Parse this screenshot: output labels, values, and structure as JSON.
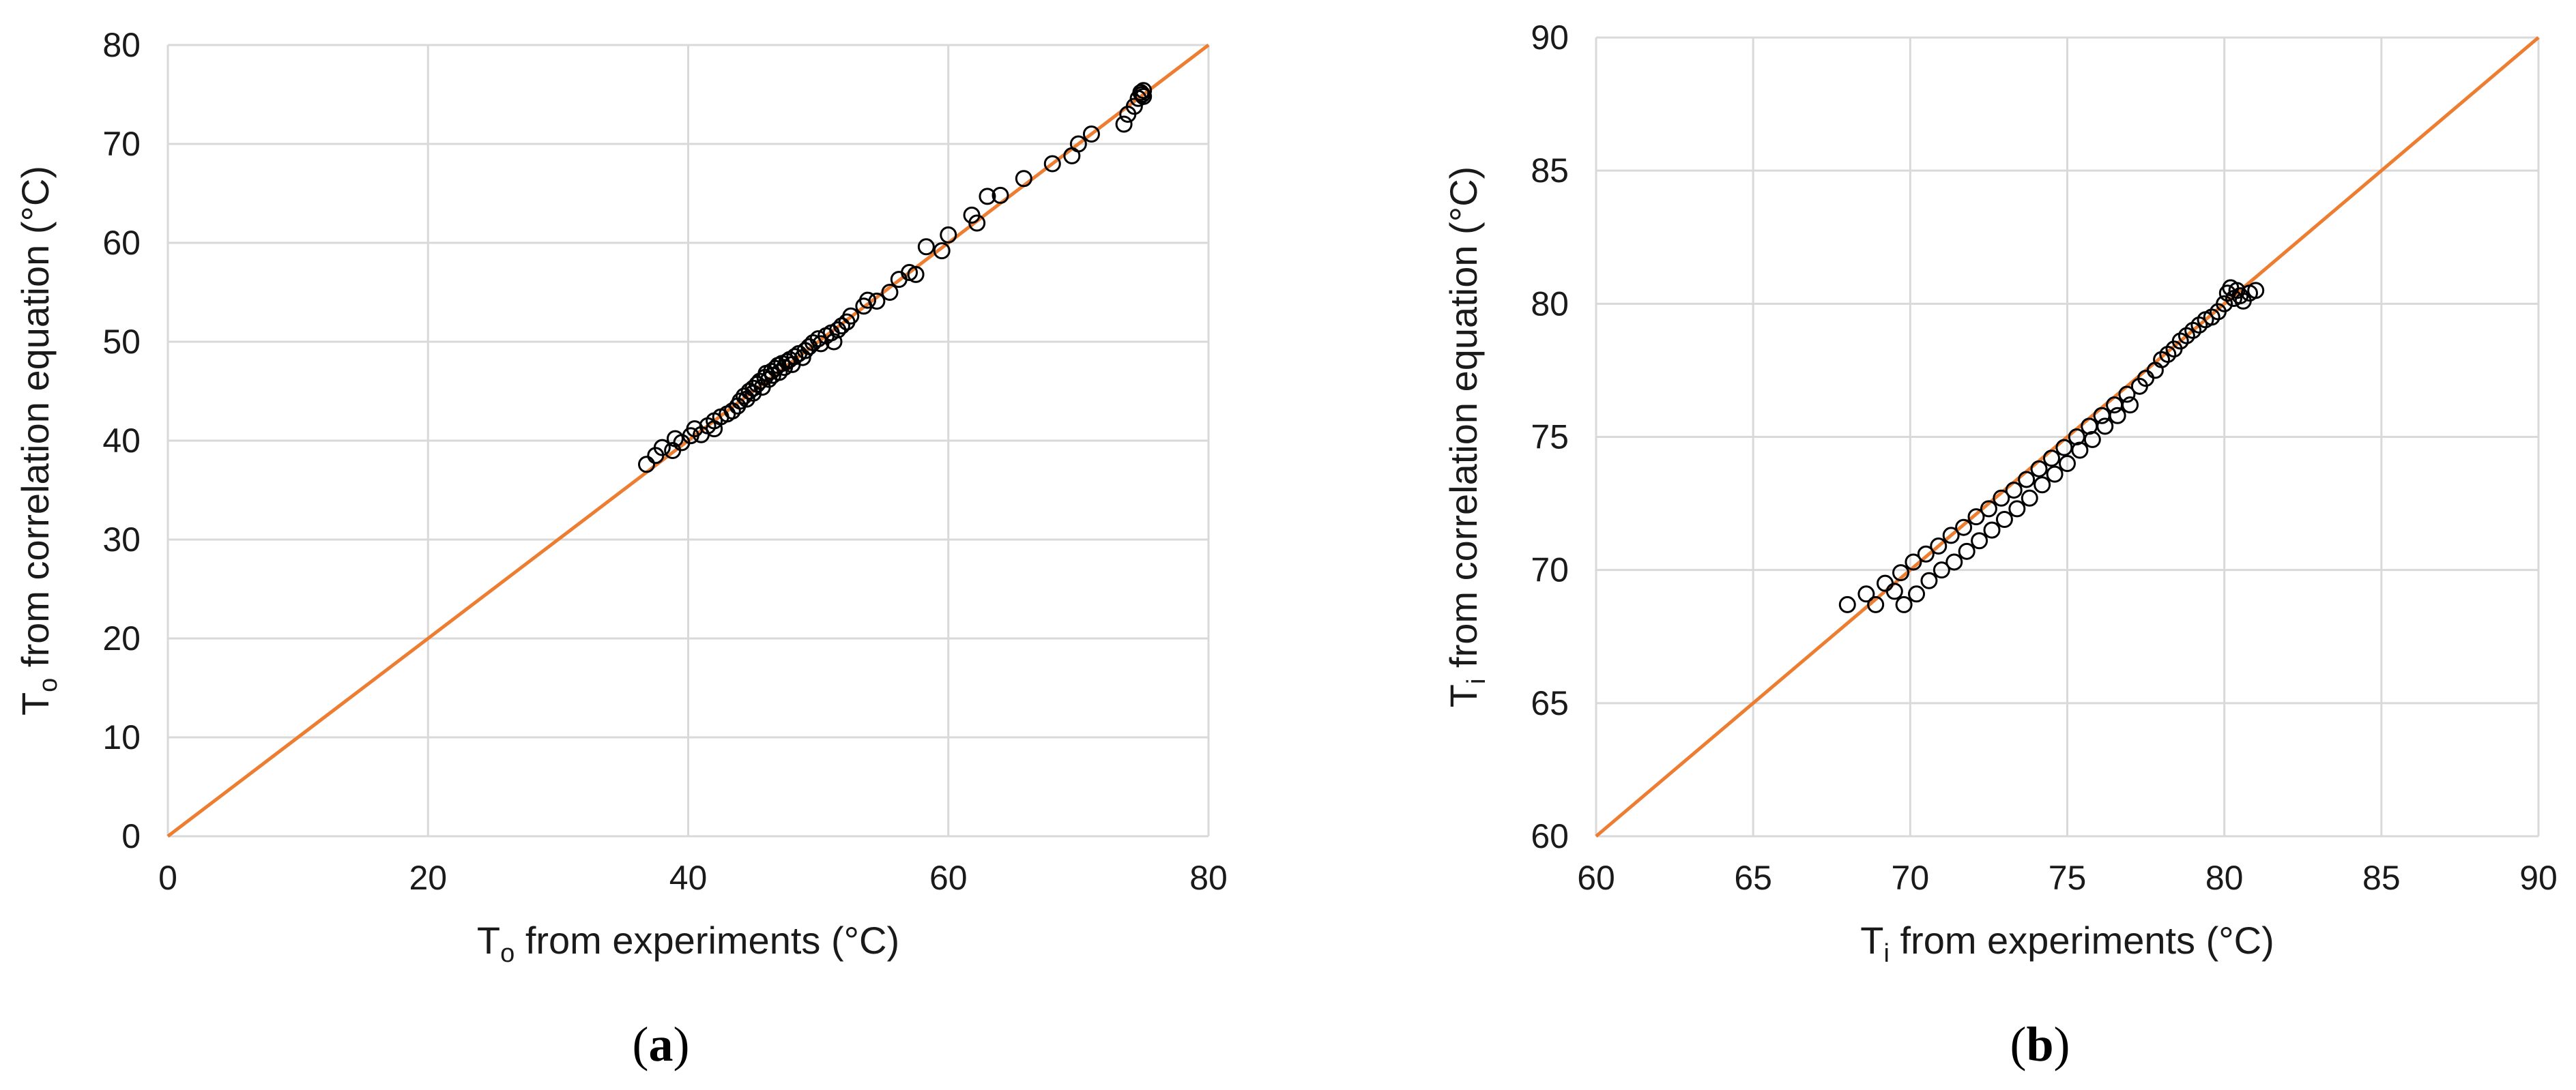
{
  "chart_data": [
    {
      "type": "scatter",
      "panel_label": "a",
      "title": "",
      "xlabel": {
        "main": "T",
        "sub": "o",
        "rest": " from experiments (°C)"
      },
      "ylabel": {
        "main": "T",
        "sub": "o",
        "rest": " from correlation equation (°C)"
      },
      "xlim": [
        0,
        80
      ],
      "ylim": [
        0,
        80
      ],
      "xticks": [
        "0",
        "20",
        "40",
        "60",
        "80"
      ],
      "yticks": [
        "0",
        "10",
        "20",
        "30",
        "40",
        "50",
        "60",
        "70",
        "80"
      ],
      "grid": true,
      "reference_line": {
        "x": [
          0,
          80
        ],
        "y": [
          0,
          80
        ],
        "color": "#ed7d31"
      },
      "points": [
        [
          36.8,
          37.6
        ],
        [
          37.5,
          38.5
        ],
        [
          38.0,
          39.3
        ],
        [
          38.8,
          39.0
        ],
        [
          39.0,
          40.2
        ],
        [
          39.5,
          39.8
        ],
        [
          40.2,
          40.5
        ],
        [
          40.5,
          41.2
        ],
        [
          41.0,
          40.6
        ],
        [
          41.5,
          41.5
        ],
        [
          42.0,
          41.2
        ],
        [
          42.0,
          42.0
        ],
        [
          42.5,
          42.4
        ],
        [
          43.0,
          42.7
        ],
        [
          43.4,
          43.0
        ],
        [
          43.8,
          43.5
        ],
        [
          44.0,
          44.0
        ],
        [
          44.3,
          44.5
        ],
        [
          44.5,
          44.2
        ],
        [
          44.7,
          45.0
        ],
        [
          45.0,
          45.3
        ],
        [
          45.0,
          44.8
        ],
        [
          45.3,
          45.7
        ],
        [
          45.5,
          46.0
        ],
        [
          45.7,
          45.4
        ],
        [
          45.9,
          46.4
        ],
        [
          46.0,
          46.8
        ],
        [
          46.2,
          46.2
        ],
        [
          46.4,
          47.0
        ],
        [
          46.5,
          46.6
        ],
        [
          46.7,
          47.3
        ],
        [
          46.9,
          47.6
        ],
        [
          47.0,
          46.9
        ],
        [
          47.2,
          47.8
        ],
        [
          47.4,
          47.4
        ],
        [
          47.6,
          48.0
        ],
        [
          47.8,
          48.2
        ],
        [
          48.0,
          47.7
        ],
        [
          48.2,
          48.5
        ],
        [
          48.5,
          48.8
        ],
        [
          48.8,
          48.4
        ],
        [
          49.0,
          49.1
        ],
        [
          49.3,
          49.5
        ],
        [
          49.6,
          49.9
        ],
        [
          50.0,
          50.3
        ],
        [
          50.2,
          49.8
        ],
        [
          50.6,
          50.6
        ],
        [
          51.0,
          50.9
        ],
        [
          51.2,
          50.0
        ],
        [
          51.5,
          51.2
        ],
        [
          51.8,
          51.6
        ],
        [
          52.2,
          52.0
        ],
        [
          52.5,
          52.6
        ],
        [
          53.5,
          53.6
        ],
        [
          53.8,
          54.2
        ],
        [
          54.5,
          54.1
        ],
        [
          55.5,
          55.0
        ],
        [
          56.2,
          56.3
        ],
        [
          57.0,
          57.0
        ],
        [
          57.5,
          56.8
        ],
        [
          58.3,
          59.6
        ],
        [
          59.5,
          59.2
        ],
        [
          60.0,
          60.8
        ],
        [
          61.8,
          62.8
        ],
        [
          62.2,
          62.0
        ],
        [
          63.0,
          64.7
        ],
        [
          64.0,
          64.8
        ],
        [
          65.8,
          66.5
        ],
        [
          68.0,
          68.0
        ],
        [
          69.5,
          68.8
        ],
        [
          70.0,
          70.0
        ],
        [
          71.0,
          71.0
        ],
        [
          73.5,
          72.0
        ],
        [
          73.8,
          73.0
        ],
        [
          74.3,
          73.8
        ],
        [
          74.6,
          74.6
        ],
        [
          74.8,
          75.2
        ],
        [
          75.0,
          74.8
        ],
        [
          75.0,
          75.4
        ],
        [
          74.9,
          75.0
        ]
      ]
    },
    {
      "type": "scatter",
      "panel_label": "b",
      "title": "",
      "xlabel": {
        "main": "T",
        "sub": "i",
        "rest": " from experiments (°C)"
      },
      "ylabel": {
        "main": "T",
        "sub": "i",
        "rest": " from correlation equation (°C)"
      },
      "xlim": [
        60,
        90
      ],
      "ylim": [
        60,
        90
      ],
      "xticks": [
        "60",
        "65",
        "70",
        "75",
        "80",
        "85",
        "90"
      ],
      "yticks": [
        "60",
        "65",
        "70",
        "75",
        "80",
        "85",
        "90"
      ],
      "grid": true,
      "reference_line": {
        "x": [
          60,
          90
        ],
        "y": [
          60,
          90
        ],
        "color": "#ed7d31"
      },
      "points": [
        [
          68.0,
          68.7
        ],
        [
          68.6,
          69.1
        ],
        [
          68.9,
          68.7
        ],
        [
          69.2,
          69.5
        ],
        [
          69.5,
          69.2
        ],
        [
          69.7,
          69.9
        ],
        [
          69.8,
          68.7
        ],
        [
          70.1,
          70.3
        ],
        [
          70.2,
          69.1
        ],
        [
          70.5,
          70.6
        ],
        [
          70.6,
          69.6
        ],
        [
          70.9,
          70.9
        ],
        [
          71.0,
          70.0
        ],
        [
          71.3,
          71.3
        ],
        [
          71.4,
          70.3
        ],
        [
          71.7,
          71.6
        ],
        [
          71.8,
          70.7
        ],
        [
          72.1,
          72.0
        ],
        [
          72.2,
          71.1
        ],
        [
          72.5,
          72.3
        ],
        [
          72.6,
          71.5
        ],
        [
          72.9,
          72.7
        ],
        [
          73.0,
          71.9
        ],
        [
          73.3,
          73.0
        ],
        [
          73.4,
          72.3
        ],
        [
          73.7,
          73.4
        ],
        [
          73.8,
          72.7
        ],
        [
          74.1,
          73.8
        ],
        [
          74.2,
          73.2
        ],
        [
          74.5,
          74.2
        ],
        [
          74.6,
          73.6
        ],
        [
          74.9,
          74.6
        ],
        [
          75.0,
          74.0
        ],
        [
          75.3,
          75.0
        ],
        [
          75.4,
          74.5
        ],
        [
          75.7,
          75.4
        ],
        [
          75.8,
          74.9
        ],
        [
          76.1,
          75.8
        ],
        [
          76.2,
          75.4
        ],
        [
          76.5,
          76.2
        ],
        [
          76.6,
          75.8
        ],
        [
          76.9,
          76.6
        ],
        [
          77.0,
          76.2
        ],
        [
          77.3,
          76.9
        ],
        [
          77.5,
          77.2
        ],
        [
          77.8,
          77.5
        ],
        [
          78.0,
          77.9
        ],
        [
          78.2,
          78.1
        ],
        [
          78.4,
          78.3
        ],
        [
          78.6,
          78.6
        ],
        [
          78.8,
          78.8
        ],
        [
          79.0,
          79.0
        ],
        [
          79.2,
          79.2
        ],
        [
          79.4,
          79.4
        ],
        [
          79.6,
          79.5
        ],
        [
          79.8,
          79.7
        ],
        [
          80.0,
          80.0
        ],
        [
          80.1,
          80.4
        ],
        [
          80.2,
          80.6
        ],
        [
          80.3,
          80.2
        ],
        [
          80.4,
          80.5
        ],
        [
          80.5,
          80.3
        ],
        [
          80.6,
          80.1
        ],
        [
          80.8,
          80.4
        ],
        [
          81.0,
          80.5
        ]
      ]
    }
  ]
}
